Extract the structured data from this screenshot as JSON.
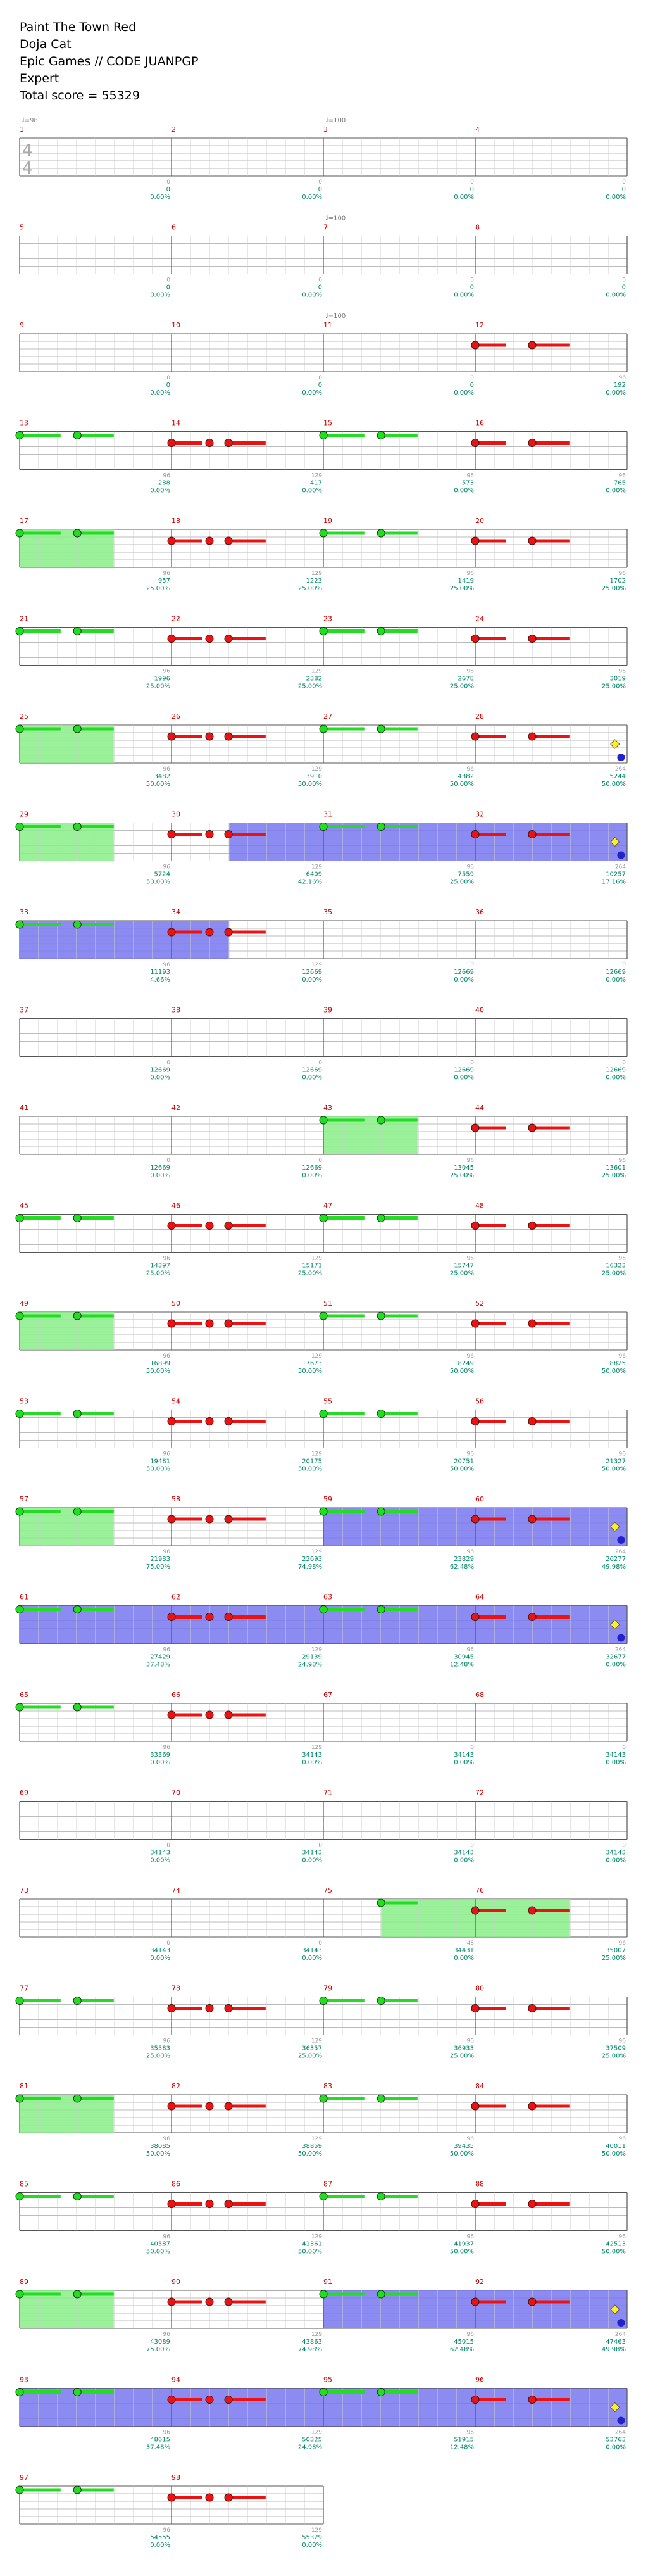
{
  "song": {
    "title": "Paint The Town Red",
    "artist": "Doja Cat",
    "charter": "Epic Games // CODE JUANPGP",
    "difficulty": "Expert",
    "total_score_label": "Total score = 55329"
  },
  "time_signature": {
    "top": "4",
    "bottom": "4"
  },
  "colors": {
    "green_note": "#22dd22",
    "red_note": "#ee1111",
    "purple_note": "#aa1177",
    "star_power": "#7777ee",
    "solo": "#88ee88",
    "measure_num": "#cc0000",
    "score_text": "#008866",
    "note_count": "#999999"
  },
  "chart_data": {
    "type": "table",
    "measures": [
      {
        "n": "1",
        "tempo": "♩=98",
        "notes": "0",
        "score": "0",
        "pct": "0.00%"
      },
      {
        "n": "2",
        "notes": "0",
        "score": "0",
        "pct": "0.00%"
      },
      {
        "n": "3",
        "tempo": "♩=100",
        "notes": "0",
        "score": "0",
        "pct": "0.00%"
      },
      {
        "n": "4",
        "notes": "0",
        "score": "0",
        "pct": "0.00%"
      },
      {
        "n": "5",
        "notes": "0",
        "score": "0",
        "pct": "0.00%"
      },
      {
        "n": "6",
        "notes": "0",
        "score": "0",
        "pct": "0.00%"
      },
      {
        "n": "7",
        "tempo": "♩=100",
        "notes": "0",
        "score": "0",
        "pct": "0.00%"
      },
      {
        "n": "8",
        "notes": "0",
        "score": "0",
        "pct": "0.00%"
      },
      {
        "n": "9",
        "notes": "0",
        "score": "0",
        "pct": "0.00%"
      },
      {
        "n": "10",
        "notes": "0",
        "score": "0",
        "pct": "0.00%"
      },
      {
        "n": "11",
        "tempo": "♩=100",
        "notes": "0",
        "score": "0",
        "pct": "0.00%"
      },
      {
        "n": "12",
        "notes": "96",
        "score": "192",
        "pct": "0.00%"
      },
      {
        "n": "13",
        "notes": "96",
        "score": "288",
        "pct": "0.00%"
      },
      {
        "n": "14",
        "notes": "129",
        "score": "417",
        "pct": "0.00%"
      },
      {
        "n": "15",
        "notes": "96",
        "score": "573",
        "pct": "0.00%"
      },
      {
        "n": "16",
        "notes": "96",
        "score": "765",
        "pct": "0.00%"
      },
      {
        "n": "17",
        "notes": "96",
        "score": "957",
        "pct": "25.00%"
      },
      {
        "n": "18",
        "notes": "129",
        "score": "1223",
        "pct": "25.00%"
      },
      {
        "n": "19",
        "notes": "96",
        "score": "1419",
        "pct": "25.00%"
      },
      {
        "n": "20",
        "notes": "96",
        "score": "1702",
        "pct": "25.00%"
      },
      {
        "n": "21",
        "notes": "96",
        "score": "1996",
        "pct": "25.00%"
      },
      {
        "n": "22",
        "notes": "129",
        "score": "2382",
        "pct": "25.00%"
      },
      {
        "n": "23",
        "notes": "96",
        "score": "2678",
        "pct": "25.00%"
      },
      {
        "n": "24",
        "notes": "96",
        "score": "3019",
        "pct": "25.00%"
      },
      {
        "n": "25",
        "notes": "96",
        "score": "3482",
        "pct": "50.00%"
      },
      {
        "n": "26",
        "notes": "129",
        "score": "3910",
        "pct": "50.00%"
      },
      {
        "n": "27",
        "notes": "96",
        "score": "4382",
        "pct": "50.00%"
      },
      {
        "n": "28",
        "notes": "264",
        "score": "5244",
        "pct": "50.00%"
      },
      {
        "n": "29",
        "notes": "96",
        "score": "5724",
        "pct": "50.00%"
      },
      {
        "n": "30",
        "notes": "129",
        "score": "6409",
        "pct": "42.16%"
      },
      {
        "n": "31",
        "notes": "96",
        "score": "7559",
        "pct": "25.00%"
      },
      {
        "n": "32",
        "notes": "264",
        "score": "10257",
        "pct": "17.16%"
      },
      {
        "n": "33",
        "notes": "96",
        "score": "11193",
        "pct": "4.66%"
      },
      {
        "n": "34",
        "notes": "129",
        "score": "12669",
        "pct": "0.00%"
      },
      {
        "n": "35",
        "notes": "0",
        "score": "12669",
        "pct": "0.00%"
      },
      {
        "n": "36",
        "notes": "0",
        "score": "12669",
        "pct": "0.00%"
      },
      {
        "n": "37",
        "notes": "0",
        "score": "12669",
        "pct": "0.00%"
      },
      {
        "n": "38",
        "notes": "0",
        "score": "12669",
        "pct": "0.00%"
      },
      {
        "n": "39",
        "notes": "0",
        "score": "12669",
        "pct": "0.00%"
      },
      {
        "n": "40",
        "notes": "0",
        "score": "12669",
        "pct": "0.00%"
      },
      {
        "n": "41",
        "notes": "0",
        "score": "12669",
        "pct": "0.00%"
      },
      {
        "n": "42",
        "notes": "0",
        "score": "12669",
        "pct": "0.00%"
      },
      {
        "n": "43",
        "notes": "96",
        "score": "13045",
        "pct": "25.00%"
      },
      {
        "n": "44",
        "notes": "96",
        "score": "13601",
        "pct": "25.00%"
      },
      {
        "n": "45",
        "notes": "96",
        "score": "14397",
        "pct": "25.00%"
      },
      {
        "n": "46",
        "notes": "129",
        "score": "15171",
        "pct": "25.00%"
      },
      {
        "n": "47",
        "notes": "96",
        "score": "15747",
        "pct": "25.00%"
      },
      {
        "n": "48",
        "notes": "96",
        "score": "16323",
        "pct": "25.00%"
      },
      {
        "n": "49",
        "notes": "96",
        "score": "16899",
        "pct": "50.00%"
      },
      {
        "n": "50",
        "notes": "129",
        "score": "17673",
        "pct": "50.00%"
      },
      {
        "n": "51",
        "notes": "96",
        "score": "18249",
        "pct": "50.00%"
      },
      {
        "n": "52",
        "notes": "96",
        "score": "18825",
        "pct": "50.00%"
      },
      {
        "n": "53",
        "notes": "96",
        "score": "19481",
        "pct": "50.00%"
      },
      {
        "n": "54",
        "notes": "129",
        "score": "20175",
        "pct": "50.00%"
      },
      {
        "n": "55",
        "notes": "96",
        "score": "20751",
        "pct": "50.00%"
      },
      {
        "n": "56",
        "notes": "96",
        "score": "21327",
        "pct": "50.00%"
      },
      {
        "n": "57",
        "notes": "96",
        "score": "21983",
        "pct": "75.00%"
      },
      {
        "n": "58",
        "notes": "129",
        "score": "22693",
        "pct": "74.98%"
      },
      {
        "n": "59",
        "notes": "96",
        "score": "23829",
        "pct": "62.48%"
      },
      {
        "n": "60",
        "notes": "264",
        "score": "26277",
        "pct": "49.98%"
      },
      {
        "n": "61",
        "notes": "96",
        "score": "27429",
        "pct": "37.48%"
      },
      {
        "n": "62",
        "notes": "129",
        "score": "29139",
        "pct": "24.98%"
      },
      {
        "n": "63",
        "notes": "96",
        "score": "30945",
        "pct": "12.48%"
      },
      {
        "n": "64",
        "notes": "264",
        "score": "32677",
        "pct": "0.00%"
      },
      {
        "n": "65",
        "notes": "96",
        "score": "33369",
        "pct": "0.00%"
      },
      {
        "n": "66",
        "notes": "129",
        "score": "34143",
        "pct": "0.00%"
      },
      {
        "n": "67",
        "notes": "0",
        "score": "34143",
        "pct": "0.00%"
      },
      {
        "n": "68",
        "notes": "0",
        "score": "34143",
        "pct": "0.00%"
      },
      {
        "n": "69",
        "notes": "0",
        "score": "34143",
        "pct": "0.00%"
      },
      {
        "n": "70",
        "notes": "0",
        "score": "34143",
        "pct": "0.00%"
      },
      {
        "n": "71",
        "notes": "0",
        "score": "34143",
        "pct": "0.00%"
      },
      {
        "n": "72",
        "notes": "0",
        "score": "34143",
        "pct": "0.00%"
      },
      {
        "n": "73",
        "notes": "0",
        "score": "34143",
        "pct": "0.00%"
      },
      {
        "n": "74",
        "notes": "0",
        "score": "34143",
        "pct": "0.00%"
      },
      {
        "n": "75",
        "notes": "48",
        "score": "34431",
        "pct": "0.00%"
      },
      {
        "n": "76",
        "notes": "96",
        "score": "35007",
        "pct": "25.00%"
      },
      {
        "n": "77",
        "notes": "96",
        "score": "35583",
        "pct": "25.00%"
      },
      {
        "n": "78",
        "notes": "129",
        "score": "36357",
        "pct": "25.00%"
      },
      {
        "n": "79",
        "notes": "96",
        "score": "36933",
        "pct": "25.00%"
      },
      {
        "n": "80",
        "notes": "96",
        "score": "37509",
        "pct": "25.00%"
      },
      {
        "n": "81",
        "notes": "96",
        "score": "38085",
        "pct": "50.00%"
      },
      {
        "n": "82",
        "notes": "129",
        "score": "38859",
        "pct": "50.00%"
      },
      {
        "n": "83",
        "notes": "96",
        "score": "39435",
        "pct": "50.00%"
      },
      {
        "n": "84",
        "notes": "96",
        "score": "40011",
        "pct": "50.00%"
      },
      {
        "n": "85",
        "notes": "96",
        "score": "40587",
        "pct": "50.00%"
      },
      {
        "n": "86",
        "notes": "129",
        "score": "41361",
        "pct": "50.00%"
      },
      {
        "n": "87",
        "notes": "96",
        "score": "41937",
        "pct": "50.00%"
      },
      {
        "n": "88",
        "notes": "96",
        "score": "42513",
        "pct": "50.00%"
      },
      {
        "n": "89",
        "notes": "96",
        "score": "43089",
        "pct": "75.00%"
      },
      {
        "n": "90",
        "notes": "129",
        "score": "43863",
        "pct": "74.98%"
      },
      {
        "n": "91",
        "notes": "96",
        "score": "45015",
        "pct": "62.48%"
      },
      {
        "n": "92",
        "notes": "264",
        "score": "47463",
        "pct": "49.98%"
      },
      {
        "n": "93",
        "notes": "96",
        "score": "48615",
        "pct": "37.48%"
      },
      {
        "n": "94",
        "notes": "129",
        "score": "50325",
        "pct": "24.98%"
      },
      {
        "n": "95",
        "notes": "96",
        "score": "51915",
        "pct": "12.48%"
      },
      {
        "n": "96",
        "notes": "264",
        "score": "53763",
        "pct": "0.00%"
      },
      {
        "n": "97",
        "notes": "96",
        "score": "54555",
        "pct": "0.00%"
      },
      {
        "n": "98",
        "notes": "129",
        "score": "55329",
        "pct": "0.00%"
      }
    ]
  }
}
